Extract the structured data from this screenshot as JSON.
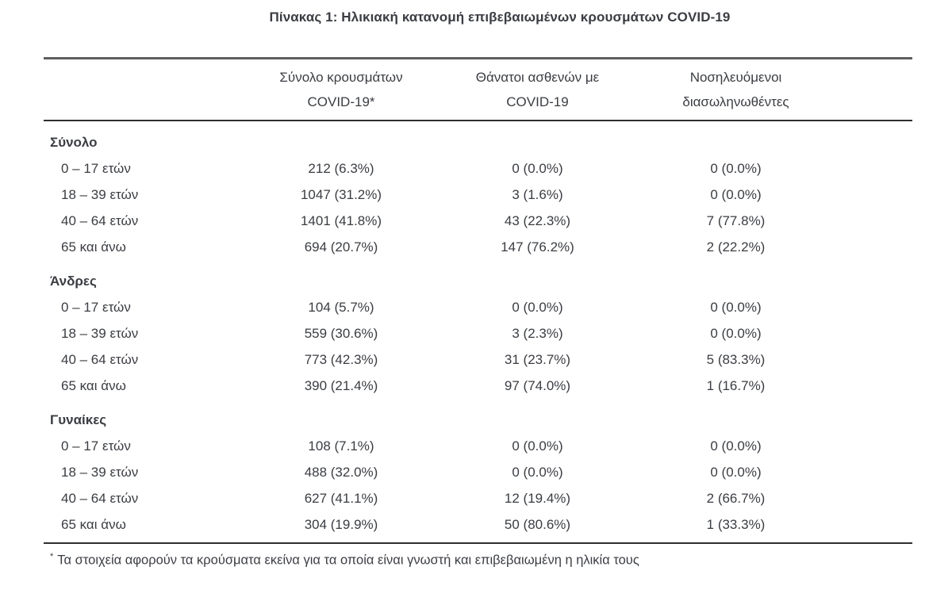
{
  "title": "Πίνακας 1: Ηλικιακή κατανομή επιβεβαιωμένων κρουσμάτων COVID-19",
  "colors": {
    "background": "#ffffff",
    "text": "#3a3d42",
    "rule_top_gray": "#5f5f5f",
    "rule_dark": "#2e2e2e"
  },
  "table": {
    "columns": [
      {
        "line1": "",
        "line2": ""
      },
      {
        "line1": "Σύνολο κρουσμάτων",
        "line2": "COVID-19*"
      },
      {
        "line1": "Θάνατοι ασθενών με",
        "line2": "COVID-19"
      },
      {
        "line1": "Νοσηλευόμενοι",
        "line2": "διασωληνωθέντες"
      }
    ],
    "sections": [
      {
        "label": "Σύνολο",
        "rows": [
          {
            "label": "0 – 17 ετών",
            "cases": "212 (6.3%)",
            "deaths": "0 (0.0%)",
            "intubated": "0 (0.0%)"
          },
          {
            "label": "18 – 39 ετών",
            "cases": "1047 (31.2%)",
            "deaths": "3 (1.6%)",
            "intubated": "0 (0.0%)"
          },
          {
            "label": "40 – 64 ετών",
            "cases": "1401 (41.8%)",
            "deaths": "43 (22.3%)",
            "intubated": "7 (77.8%)"
          },
          {
            "label": "65 και άνω",
            "cases": "694 (20.7%)",
            "deaths": "147 (76.2%)",
            "intubated": "2 (22.2%)"
          }
        ]
      },
      {
        "label": "Άνδρες",
        "rows": [
          {
            "label": "0 – 17 ετών",
            "cases": "104 (5.7%)",
            "deaths": "0 (0.0%)",
            "intubated": "0 (0.0%)"
          },
          {
            "label": "18 – 39 ετών",
            "cases": "559 (30.6%)",
            "deaths": "3 (2.3%)",
            "intubated": "0 (0.0%)"
          },
          {
            "label": "40 – 64 ετών",
            "cases": "773 (42.3%)",
            "deaths": "31 (23.7%)",
            "intubated": "5 (83.3%)"
          },
          {
            "label": "65 και άνω",
            "cases": "390 (21.4%)",
            "deaths": "97 (74.0%)",
            "intubated": "1 (16.7%)"
          }
        ]
      },
      {
        "label": "Γυναίκες",
        "rows": [
          {
            "label": "0 – 17 ετών",
            "cases": "108 (7.1%)",
            "deaths": "0 (0.0%)",
            "intubated": "0 (0.0%)"
          },
          {
            "label": "18 – 39 ετών",
            "cases": "488 (32.0%)",
            "deaths": "0 (0.0%)",
            "intubated": "0 (0.0%)"
          },
          {
            "label": "40 – 64 ετών",
            "cases": "627 (41.1%)",
            "deaths": "12 (19.4%)",
            "intubated": "2 (66.7%)"
          },
          {
            "label": "65 και άνω",
            "cases": "304 (19.9%)",
            "deaths": "50 (80.6%)",
            "intubated": "1 (33.3%)"
          }
        ]
      }
    ]
  },
  "footnote": {
    "marker": "*",
    "text": "Τα στοιχεία αφορούν τα κρούσματα εκείνα για τα οποία είναι γνωστή και επιβεβαιωμένη η ηλικία τους"
  }
}
